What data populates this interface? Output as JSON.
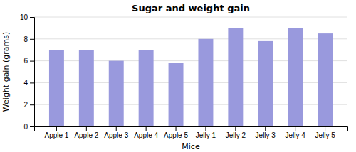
{
  "chart_data": {
    "type": "bar",
    "title": "Sugar and weight gain",
    "xlabel": "Mice",
    "ylabel": "Weight gain (grams)",
    "categories": [
      "Apple 1",
      "Apple 2",
      "Apple 3",
      "Apple 4",
      "Apple 5",
      "Jelly 1",
      "Jelly 2",
      "Jelly 3",
      "Jelly 4",
      "Jelly 5"
    ],
    "values": [
      7.0,
      7.0,
      6.0,
      7.0,
      5.8,
      8.0,
      9.0,
      7.8,
      9.0,
      8.5
    ],
    "color": "#9999dd",
    "ylim": [
      0,
      10
    ],
    "yticks": [
      0,
      2,
      4,
      6,
      8,
      10
    ],
    "grid": true
  }
}
